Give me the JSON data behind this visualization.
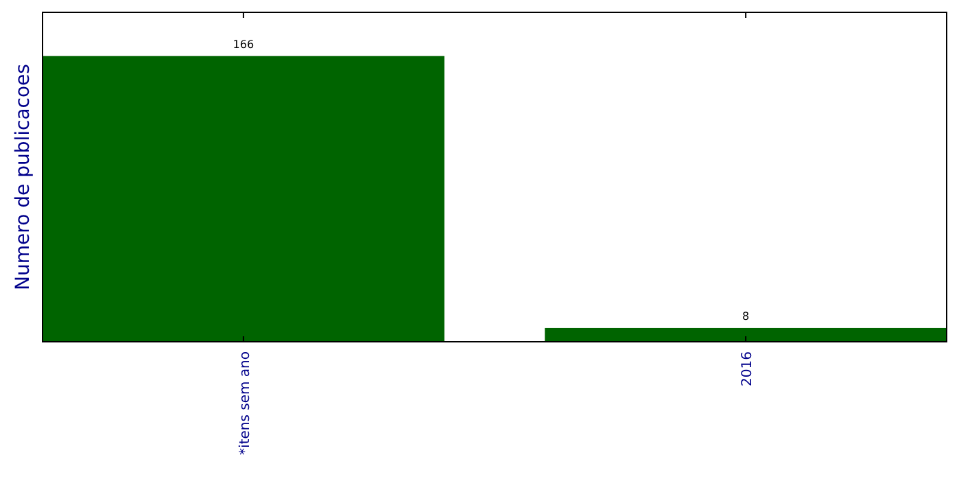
{
  "chart_data": {
    "type": "bar",
    "ylabel": "Numero de publicacoes",
    "categories": [
      "*itens sem ano",
      "2016"
    ],
    "values": [
      166,
      8
    ],
    "color": "#006400",
    "data_labels": true,
    "tick_labels": "x"
  }
}
